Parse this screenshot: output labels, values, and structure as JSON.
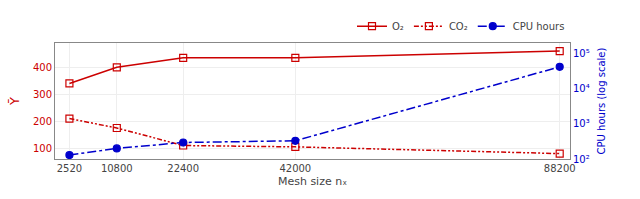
{
  "chart_data": {
    "type": "line",
    "x_label": "Mesh size nₓ",
    "y_label": "Ȳ",
    "y2_label": "CPU hours (log scale)",
    "x": [
      2520,
      10800,
      22400,
      42000,
      88200
    ],
    "series": [
      {
        "name": "O₂",
        "color": "#cc0000",
        "values": [
          340,
          400,
          435,
          435,
          460
        ],
        "marker": "square-open",
        "line_style": "solid"
      },
      {
        "name": "CO₂",
        "color": "#cc0000",
        "values": [
          210,
          175,
          110,
          105,
          80
        ],
        "marker": "square-open",
        "line_style": "dashdotdot"
      },
      {
        "name": "CPU hours",
        "color": "#0000cc",
        "values": [
          130,
          200,
          295,
          330,
          42000
        ],
        "marker": "circle",
        "line_style": "dashdot",
        "axis": "y2"
      }
    ],
    "xlim": [
      0,
      90000
    ],
    "xticks": [
      2520,
      10800,
      22400,
      42000,
      88200
    ],
    "ylim": [
      60,
      490
    ],
    "yticks": [
      100,
      200,
      300,
      400
    ],
    "y2lim": [
      100,
      200000
    ],
    "y2ticks": [
      {
        "value": 100,
        "label": "10²"
      },
      {
        "value": 1000,
        "label": "10³"
      },
      {
        "value": 10000,
        "label": "10⁴"
      },
      {
        "value": 100000,
        "label": "10⁵"
      }
    ],
    "log": "y2",
    "grid": true,
    "legend": "upper right"
  }
}
